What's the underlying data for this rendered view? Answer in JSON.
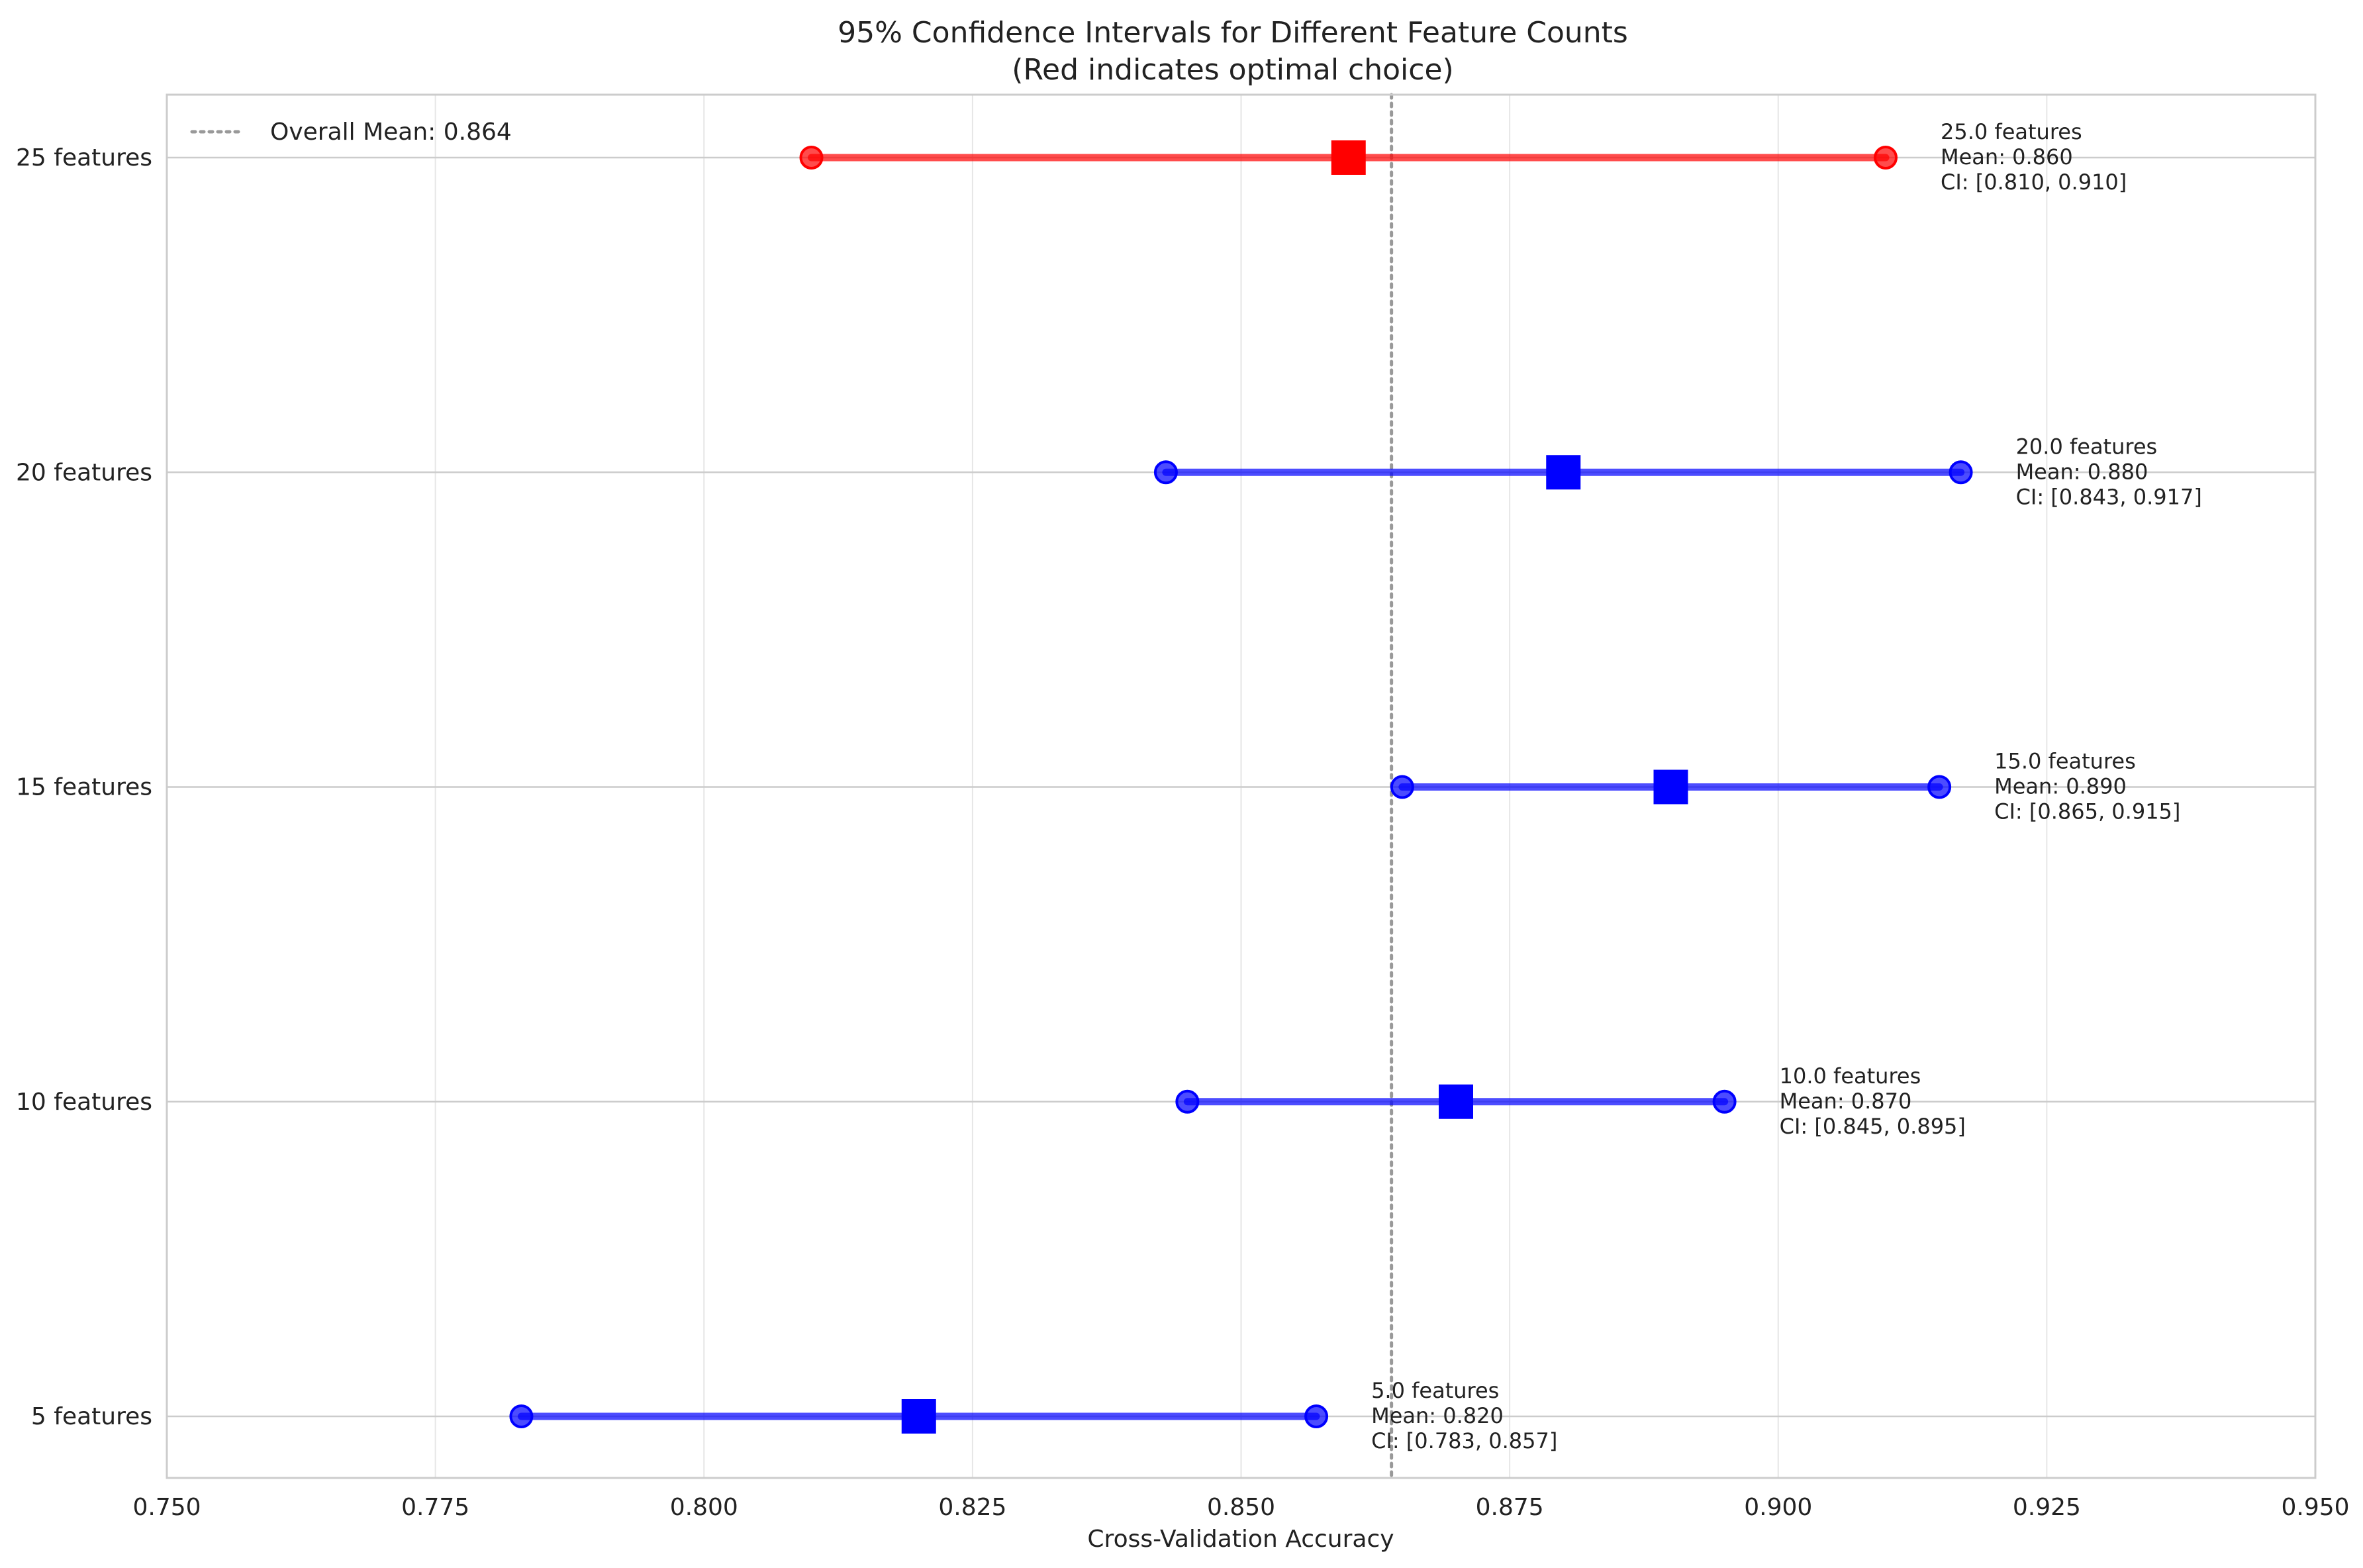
{
  "chart_data": {
    "type": "errorbar",
    "title": "95% Confidence Intervals for Different Feature Counts",
    "subtitle": "(Red indicates optimal choice)",
    "xlabel": "Cross-Validation Accuracy",
    "ylabel": "",
    "xlim": [
      0.75,
      0.95
    ],
    "xticks": [
      "0.750",
      "0.775",
      "0.800",
      "0.825",
      "0.850",
      "0.875",
      "0.900",
      "0.925",
      "0.950"
    ],
    "grid": true,
    "legend": {
      "position": "top-left",
      "entries": [
        {
          "label": "Overall Mean: 0.864",
          "style": "dotted",
          "color": "#999999"
        }
      ]
    },
    "reference_line": {
      "value": 0.864,
      "style": "dotted",
      "color": "#999999"
    },
    "categories": [
      "25 features",
      "20 features",
      "15 features",
      "10 features",
      "5 features"
    ],
    "points": [
      {
        "category": "25 features",
        "mean": 0.86,
        "ci_low": 0.81,
        "ci_high": 0.91,
        "optimal": true,
        "annotation": [
          "25.0 features",
          "Mean: 0.860",
          "CI: [0.810, 0.910]"
        ]
      },
      {
        "category": "20 features",
        "mean": 0.88,
        "ci_low": 0.843,
        "ci_high": 0.917,
        "optimal": false,
        "annotation": [
          "20.0 features",
          "Mean: 0.880",
          "CI: [0.843, 0.917]"
        ]
      },
      {
        "category": "15 features",
        "mean": 0.89,
        "ci_low": 0.865,
        "ci_high": 0.915,
        "optimal": false,
        "annotation": [
          "15.0 features",
          "Mean: 0.890",
          "CI: [0.865, 0.915]"
        ]
      },
      {
        "category": "10 features",
        "mean": 0.87,
        "ci_low": 0.845,
        "ci_high": 0.895,
        "optimal": false,
        "annotation": [
          "10.0 features",
          "Mean: 0.870",
          "CI: [0.845, 0.895]"
        ]
      },
      {
        "category": "5 features",
        "mean": 0.82,
        "ci_low": 0.783,
        "ci_high": 0.857,
        "optimal": false,
        "annotation": [
          "5.0 features",
          "Mean: 0.820",
          "CI: [0.783, 0.857]"
        ]
      }
    ],
    "colors": {
      "optimal": "#ff0000",
      "default": "#0000ff",
      "grid": "#e6e6e6",
      "axes": "#cccccc"
    }
  }
}
